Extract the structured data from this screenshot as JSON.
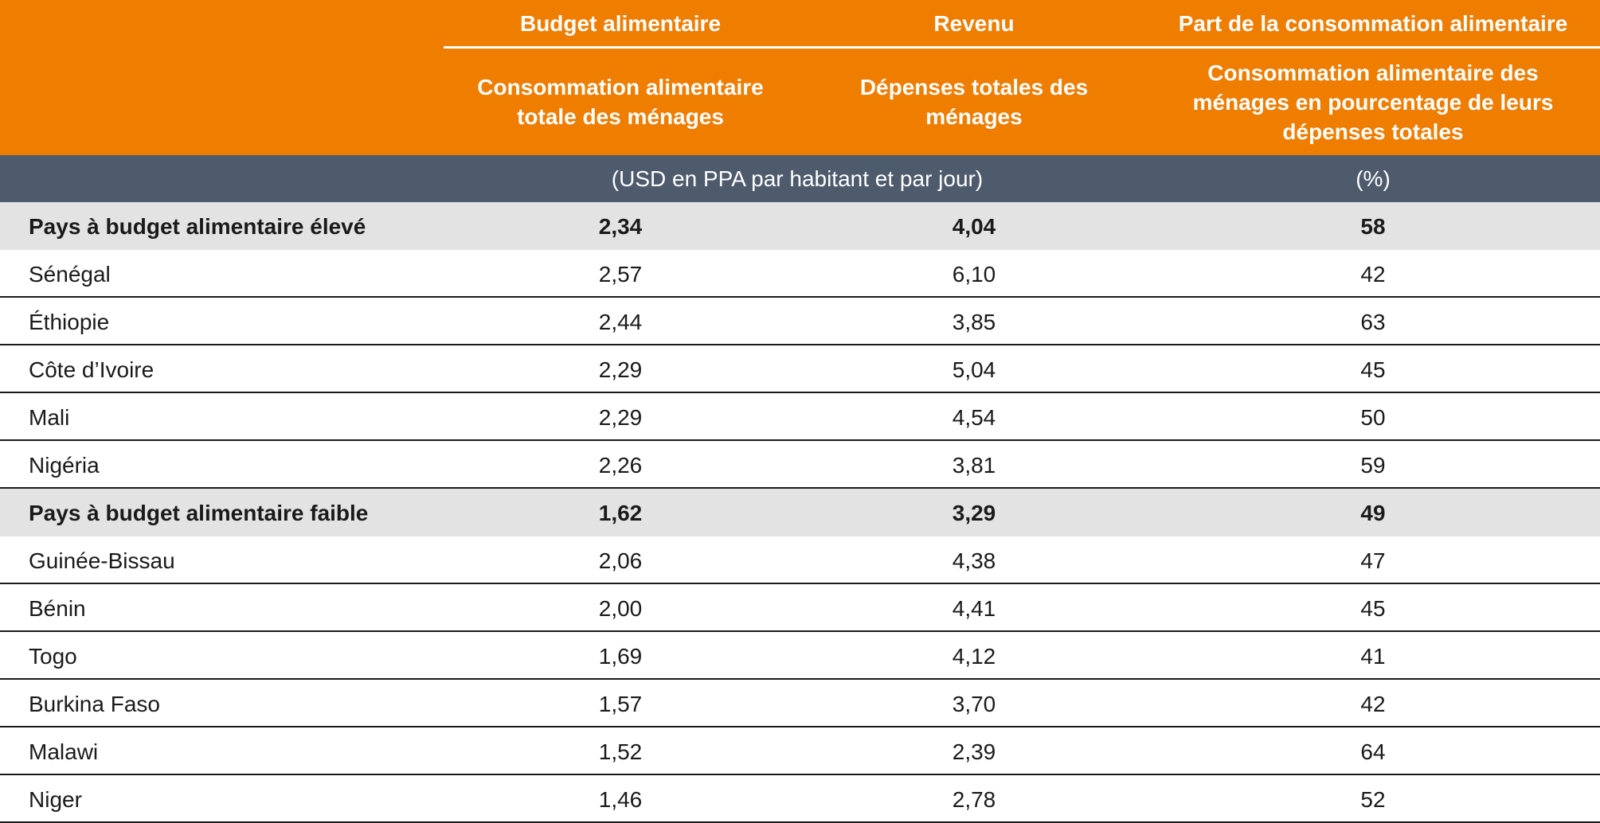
{
  "header": {
    "groups": [
      "Budget alimentaire",
      "Revenu",
      "Part de la consommation alimentaire"
    ],
    "subheaders": [
      "Consommation alimentaire totale des ménages",
      "Dépenses totales des ménages",
      "Consommation alimentaire des ménages en pourcentage de leurs dépenses totales"
    ],
    "units": [
      "(USD en PPA par habitant et par jour)",
      "(%)"
    ]
  },
  "table": {
    "rows": [
      {
        "label": "Pays à budget alimentaire élevé",
        "cells": [
          "2,34",
          "4,04",
          "58"
        ],
        "highlight": true
      },
      {
        "label": "Sénégal",
        "cells": [
          "2,57",
          "6,10",
          "42"
        ],
        "highlight": false
      },
      {
        "label": "Éthiopie",
        "cells": [
          "2,44",
          "3,85",
          "63"
        ],
        "highlight": false
      },
      {
        "label": "Côte d’Ivoire",
        "cells": [
          "2,29",
          "5,04",
          "45"
        ],
        "highlight": false
      },
      {
        "label": "Mali",
        "cells": [
          "2,29",
          "4,54",
          "50"
        ],
        "highlight": false
      },
      {
        "label": "Nigéria",
        "cells": [
          "2,26",
          "3,81",
          "59"
        ],
        "highlight": false
      },
      {
        "label": "Pays à budget alimentaire faible",
        "cells": [
          "1,62",
          "3,29",
          "49"
        ],
        "highlight": true
      },
      {
        "label": "Guinée-Bissau",
        "cells": [
          "2,06",
          "4,38",
          "47"
        ],
        "highlight": false
      },
      {
        "label": "Bénin",
        "cells": [
          "2,00",
          "4,41",
          "45"
        ],
        "highlight": false
      },
      {
        "label": "Togo",
        "cells": [
          "1,69",
          "4,12",
          "41"
        ],
        "highlight": false
      },
      {
        "label": "Burkina Faso",
        "cells": [
          "1,57",
          "3,70",
          "42"
        ],
        "highlight": false
      },
      {
        "label": "Malawi",
        "cells": [
          "1,52",
          "2,39",
          "64"
        ],
        "highlight": false
      },
      {
        "label": "Niger",
        "cells": [
          "1,46",
          "2,78",
          "52"
        ],
        "highlight": false
      }
    ]
  }
}
